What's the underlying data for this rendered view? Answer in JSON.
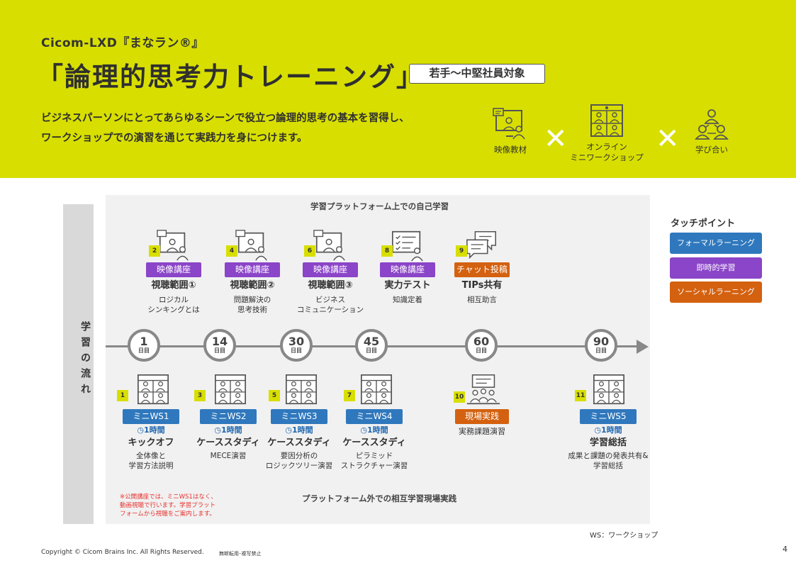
{
  "header": {
    "brand": "Cicom-LXD『まなラン®』",
    "title": "「論理的思考力トレーニング」",
    "target": "若手～中堅社員対象",
    "desc_line1": "ビジネスパーソンにとってあらゆるシーンで役立つ論理的思考の基本を習得し、",
    "desc_line2": "ワークショップでの演習を通じて実践力を身につけます。",
    "features": [
      {
        "icon": "video-material-icon",
        "label": "映像教材"
      },
      {
        "icon": "online-workshop-icon",
        "label_1": "オンライン",
        "label_2": "ミニワークショップ"
      },
      {
        "icon": "peer-learning-icon",
        "label": "学び合い"
      }
    ],
    "times_symbol": "✕"
  },
  "flow_label": "学習の流れ",
  "sections": {
    "top": "学習プラットフォーム上での自己学習",
    "bottom": "プラットフォーム外での相互学習現場実践"
  },
  "days": [
    {
      "n": "1",
      "u": "日目"
    },
    {
      "n": "14",
      "u": "日目"
    },
    {
      "n": "30",
      "u": "日目"
    },
    {
      "n": "45",
      "u": "日目"
    },
    {
      "n": "60",
      "u": "日目"
    },
    {
      "n": "90",
      "u": "日目"
    }
  ],
  "top_items": [
    {
      "num": "2",
      "tag": "映像講座",
      "title": "視聴範囲①",
      "sub1": "ロジカル",
      "sub2": "シンキングとは",
      "color": "purple",
      "icon": "video-lecture-icon"
    },
    {
      "num": "4",
      "tag": "映像講座",
      "title": "視聴範囲②",
      "sub1": "問題解決の",
      "sub2": "思考技術",
      "color": "purple",
      "icon": "video-lecture-icon"
    },
    {
      "num": "6",
      "tag": "映像講座",
      "title": "視聴範囲③",
      "sub1": "ビジネス",
      "sub2": "コミュニケーション",
      "color": "purple",
      "icon": "video-lecture-icon"
    },
    {
      "num": "8",
      "tag": "映像講座",
      "title": "実力テスト",
      "sub1": "知識定着",
      "sub2": "",
      "color": "purple",
      "icon": "test-icon"
    },
    {
      "num": "9",
      "tag": "チャット投稿",
      "title": "TIPs共有",
      "sub1": "相互助言",
      "sub2": "",
      "color": "orange",
      "icon": "chat-icon"
    }
  ],
  "bottom_items": [
    {
      "num": "1",
      "tag": "ミニWS1",
      "dur": "1時間",
      "title": "キックオフ",
      "sub1": "全体像と",
      "sub2": "学習方法説明"
    },
    {
      "num": "3",
      "tag": "ミニWS2",
      "dur": "1時間",
      "title": "ケーススタディ",
      "sub1": "MECE演習",
      "sub2": ""
    },
    {
      "num": "5",
      "tag": "ミニWS3",
      "dur": "1時間",
      "title": "ケーススタディ",
      "sub1": "要因分析の",
      "sub2": "ロジックツリー演習"
    },
    {
      "num": "7",
      "tag": "ミニWS4",
      "dur": "1時間",
      "title": "ケーススタディ",
      "sub1": "ピラミッド",
      "sub2": "ストラクチャー演習"
    },
    {
      "num": "10",
      "tag": "現場実践",
      "dur": "",
      "title": "",
      "sub1": "実務課題演習",
      "sub2": ""
    },
    {
      "num": "11",
      "tag": "ミニWS5",
      "dur": "1時間",
      "title": "学習総括",
      "sub1": "成果と課題の発表共有&",
      "sub2": "学習総括"
    }
  ],
  "note": "※公開講座では、ミニWS1はなく、\n動画視聴で行います。学習プラット\nフォームから視聴をご案内します。",
  "touchpoints": {
    "title": "タッチポイント",
    "items": [
      {
        "label": "フォーマルラーニング",
        "color": "#2f78bd"
      },
      {
        "label": "即時的学習",
        "color": "#8b45c8"
      },
      {
        "label": "ソーシャルラーニング",
        "color": "#d4610f"
      }
    ]
  },
  "ws_note": "WS：ワークショップ",
  "footer": {
    "copyright": "Copyright © Cicom Brains Inc. All Rights Reserved.",
    "nocopy": "無断転用･複写禁止",
    "page": "4"
  }
}
